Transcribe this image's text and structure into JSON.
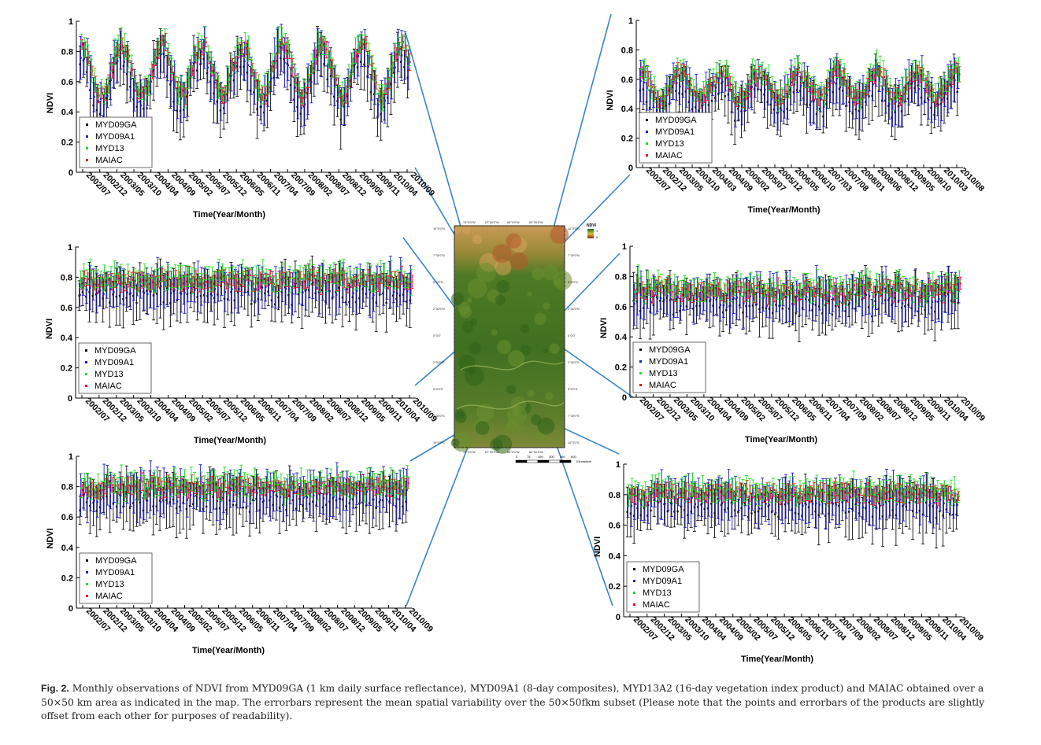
{
  "caption": {
    "label": "Fig. 2.",
    "text": "Monthly observations of NDVI from MYD09GA (1 km daily surface reflectance), MYD09A1 (8-day composites), MYD13A2 (16-day vegetation index product) and MAIAC obtained over a 50×50 km area as indicated in the map. The errorbars represent the mean spatial variability over the 50×50fkm subset (Please note that the points and errorbars of the products are slightly offset from each other for purposes of readability)."
  },
  "series_style": {
    "names": [
      "MYD09GA",
      "MYD09A1",
      "MYD13",
      "MAIAC"
    ],
    "colors": [
      "#111111",
      "#1c1ccc",
      "#22dd22",
      "#ee1111"
    ]
  },
  "map": {
    "top_coords": [
      "70°0'0\"W",
      "67°30'0\"W",
      "65°0'0\"W",
      "62°30'0\"W"
    ],
    "left_coords": [
      "10°0'0\"N",
      "7°30'0\"N",
      "5°0'0\"N",
      "2°30'0\"N",
      "0°0'0\"",
      "2°30'0\"S",
      "5°0'0\"S",
      "7°30'0\"S",
      "10°0'0\"S"
    ],
    "legend_title": "NDVI",
    "legend_hi": "1",
    "legend_lo": "0",
    "scale_labels": [
      "0",
      "75",
      "150",
      "300",
      "450",
      "600"
    ],
    "scale_unit": "Kilometers"
  },
  "chart_data": [
    {
      "type": "scatter",
      "id": "top-left",
      "xlabel": "Time(Year/Month)",
      "ylabel": "NDVI",
      "ylim": [
        0,
        1
      ],
      "x_ticks": [
        "2002/07",
        "2002/12",
        "2003/05",
        "2003/10",
        "2004/04",
        "2004/09",
        "2005/02",
        "2005/07",
        "2005/12",
        "2006/05",
        "2006/11",
        "2007/04",
        "2007/09",
        "2008/02",
        "2008/07",
        "2008/12",
        "2009/05",
        "2009/11",
        "2010/04",
        "2010/09"
      ],
      "y_ticks": [
        "0",
        "0.2",
        "0.4",
        "0.6",
        "0.8",
        "1"
      ],
      "pattern": "seasonal",
      "n": 99,
      "mean": 0.64,
      "amplitude": 0.17,
      "seed": 11,
      "legend": [
        "MYD09GA",
        "MYD09A1",
        "MYD13",
        "MAIAC"
      ]
    },
    {
      "type": "scatter",
      "id": "top-right",
      "xlabel": "Time(Year/Month)",
      "ylabel": "NDVI",
      "ylim": [
        0,
        1
      ],
      "x_ticks": [
        "2002/07",
        "2002/12",
        "2003/05",
        "2003/10",
        "2004/03",
        "2004/09",
        "2005/02",
        "2005/07",
        "2005/12",
        "2006/05",
        "2006/10",
        "2007/03",
        "2007/08",
        "2008/01",
        "2008/06",
        "2008/12",
        "2009/05",
        "2009/10",
        "2010/03",
        "2010/08"
      ],
      "y_ticks": [
        "0",
        "0.2",
        "0.4",
        "0.6",
        "0.8",
        "1"
      ],
      "pattern": "seasonal",
      "n": 98,
      "mean": 0.52,
      "amplitude": 0.09,
      "seed": 23,
      "legend": [
        "MYD09GA",
        "MYD09A1",
        "MYD13",
        "MAIAC"
      ]
    },
    {
      "type": "scatter",
      "id": "middle-left",
      "xlabel": "Time(Year/Month)",
      "ylabel": "NDVI",
      "ylim": [
        0,
        1
      ],
      "x_ticks": [
        "2002/07",
        "2002/12",
        "2003/05",
        "2003/10",
        "2004/04",
        "2004/09",
        "2005/02",
        "2005/07",
        "2005/12",
        "2006/05",
        "2006/11",
        "2007/04",
        "2007/09",
        "2008/02",
        "2008/07",
        "2008/12",
        "2009/05",
        "2009/11",
        "2010/04",
        "2010/09"
      ],
      "y_ticks": [
        "0",
        "0.2",
        "0.4",
        "0.6",
        "0.8",
        "1"
      ],
      "pattern": "flat",
      "n": 99,
      "mean": 0.74,
      "amplitude": 0.03,
      "seed": 37,
      "legend": [
        "MYD09GA",
        "MYD09A1",
        "MYD13",
        "MAIAC"
      ]
    },
    {
      "type": "scatter",
      "id": "middle-right",
      "xlabel": "Time(Year/Month)",
      "ylabel": "NDVI",
      "ylim": [
        0,
        1
      ],
      "x_ticks": [
        "2002/07",
        "2002/12",
        "2003/05",
        "2003/10",
        "2004/04",
        "2004/09",
        "2005/02",
        "2005/07",
        "2005/12",
        "2006/05",
        "2006/11",
        "2007/04",
        "2007/09",
        "2008/02",
        "2008/07",
        "2008/12",
        "2009/05",
        "2009/11",
        "2010/04",
        "2010/09"
      ],
      "y_ticks": [
        "0",
        "0.2",
        "0.4",
        "0.6",
        "0.8",
        "1"
      ],
      "pattern": "flat",
      "n": 99,
      "mean": 0.67,
      "amplitude": 0.04,
      "seed": 41,
      "legend": [
        "MYD09GA",
        "MYD09A1",
        "MYD13",
        "MAIAC"
      ]
    },
    {
      "type": "scatter",
      "id": "bottom-left",
      "xlabel": "Time(Year/Month)",
      "ylabel": "NDVI",
      "ylim": [
        0,
        1
      ],
      "x_ticks": [
        "2002/07",
        "2002/12",
        "2003/05",
        "2003/10",
        "2004/04",
        "2004/09",
        "2005/02",
        "2005/07",
        "2005/12",
        "2006/05",
        "2006/11",
        "2007/04",
        "2007/09",
        "2008/02",
        "2008/07",
        "2008/12",
        "2009/05",
        "2009/11",
        "2010/04",
        "2010/09"
      ],
      "y_ticks": [
        "0",
        "0.2",
        "0.4",
        "0.6",
        "0.8",
        "1"
      ],
      "pattern": "flat",
      "n": 99,
      "mean": 0.76,
      "amplitude": 0.03,
      "seed": 53,
      "legend": [
        "MYD09GA",
        "MYD09A1",
        "MYD13",
        "MAIAC"
      ]
    },
    {
      "type": "scatter",
      "id": "bottom-right",
      "xlabel": "Time(Year/Month)",
      "ylabel": "NDVI",
      "ylim": [
        0,
        1
      ],
      "x_ticks": [
        "2002/07",
        "2002/12",
        "2003/05",
        "2003/10",
        "2004/04",
        "2004/09",
        "2005/02",
        "2005/07",
        "2005/12",
        "2006/05",
        "2006/11",
        "2007/04",
        "2007/09",
        "2008/02",
        "2008/07",
        "2008/12",
        "2009/05",
        "2009/11",
        "2010/04",
        "2010/09"
      ],
      "y_ticks": [
        "0",
        "0.2",
        "0.4",
        "0.6",
        "0.8",
        "1"
      ],
      "pattern": "flat",
      "n": 99,
      "mean": 0.77,
      "amplitude": 0.02,
      "seed": 67,
      "legend": [
        "MYD09GA",
        "MYD09A1",
        "MYD13",
        "MAIAC"
      ]
    }
  ]
}
